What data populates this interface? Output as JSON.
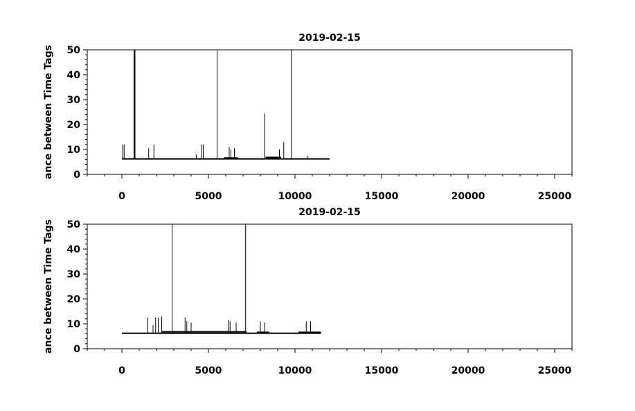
{
  "chart_data": [
    {
      "type": "line",
      "title": "2019-02-15",
      "xlabel": "",
      "ylabel": "ance between Time Tags",
      "xlim": [
        -2000,
        26000
      ],
      "ylim": [
        0,
        50
      ],
      "xticks": [
        0,
        5000,
        10000,
        15000,
        20000,
        25000
      ],
      "yticks": [
        0,
        10,
        20,
        30,
        40,
        50
      ],
      "grid": false,
      "series": [
        {
          "baseline": {
            "x_start": 0,
            "x_end": 12000,
            "y": 6.2
          },
          "segments": [
            {
              "x_start": 5900,
              "x_end": 6700,
              "y": 6.6
            },
            {
              "x_start": 8300,
              "x_end": 9200,
              "y": 6.8
            }
          ],
          "spikes": [
            [
              50,
              12
            ],
            [
              130,
              12
            ],
            [
              700,
              50
            ],
            [
              730,
              50
            ],
            [
              760,
              50
            ],
            [
              1550,
              10.5
            ],
            [
              1850,
              12
            ],
            [
              4300,
              8
            ],
            [
              4600,
              12
            ],
            [
              4700,
              12
            ],
            [
              5500,
              50
            ],
            [
              6200,
              11
            ],
            [
              6300,
              10
            ],
            [
              6500,
              10.5
            ],
            [
              8250,
              24.5
            ],
            [
              9100,
              10
            ],
            [
              9350,
              13
            ],
            [
              9800,
              50
            ],
            [
              10700,
              7.5
            ]
          ]
        }
      ]
    },
    {
      "type": "line",
      "title": "2019-02-15",
      "xlabel": "",
      "ylabel": "ance between Time Tags",
      "xlim": [
        -2000,
        26000
      ],
      "ylim": [
        0,
        50
      ],
      "xticks": [
        0,
        5000,
        10000,
        15000,
        20000,
        25000
      ],
      "yticks": [
        0,
        10,
        20,
        30,
        40,
        50
      ],
      "grid": false,
      "series": [
        {
          "baseline": {
            "x_start": 0,
            "x_end": 11500,
            "y": 6.2
          },
          "segments": [
            {
              "x_start": 2300,
              "x_end": 7200,
              "y": 6.8
            },
            {
              "x_start": 7800,
              "x_end": 8500,
              "y": 6.6
            },
            {
              "x_start": 10200,
              "x_end": 11500,
              "y": 6.6
            }
          ],
          "spikes": [
            [
              1500,
              12.5
            ],
            [
              1800,
              9.5
            ],
            [
              1950,
              12.5
            ],
            [
              2100,
              12.5
            ],
            [
              2300,
              13
            ],
            [
              2900,
              50
            ],
            [
              3650,
              12.5
            ],
            [
              3750,
              11
            ],
            [
              4000,
              10.5
            ],
            [
              6150,
              11.5
            ],
            [
              6250,
              11
            ],
            [
              6600,
              10.5
            ],
            [
              7150,
              50
            ],
            [
              8000,
              11
            ],
            [
              8250,
              10.5
            ],
            [
              10650,
              11
            ],
            [
              10900,
              11
            ]
          ]
        }
      ]
    }
  ]
}
